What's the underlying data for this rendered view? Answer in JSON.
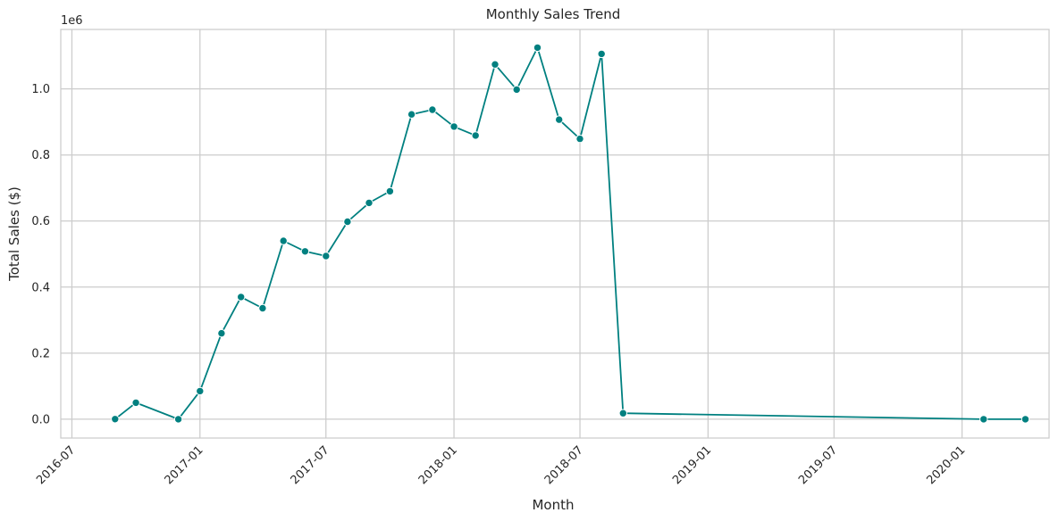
{
  "chart_data": {
    "type": "line",
    "title": "Monthly Sales Trend",
    "xlabel": "Month",
    "ylabel": "Total Sales ($)",
    "y_scale_label": "1e6",
    "y_scale": 1000000,
    "x_ticks": [
      "2016-07",
      "2017-01",
      "2017-07",
      "2018-01",
      "2018-07",
      "2019-01",
      "2019-07",
      "2020-01"
    ],
    "y_ticks": [
      "0.0",
      "0.2",
      "0.4",
      "0.6",
      "0.8",
      "1.0"
    ],
    "y_tick_values": [
      0,
      0.2,
      0.4,
      0.6,
      0.8,
      1.0
    ],
    "xlim": [
      "2016-06-15",
      "2020-05-05"
    ],
    "ylim": [
      -0.057,
      1.18
    ],
    "grid": true,
    "line_color": "#008080",
    "grid_color": "#cccccc",
    "series": [
      {
        "x": [
          "2016-09",
          "2016-10",
          "2016-12",
          "2017-01",
          "2017-02",
          "2017-03",
          "2017-04",
          "2017-05",
          "2017-06",
          "2017-07",
          "2017-08",
          "2017-09",
          "2017-10",
          "2017-11",
          "2017-12",
          "2018-01",
          "2018-02",
          "2018-03",
          "2018-04",
          "2018-05",
          "2018-06",
          "2018-07",
          "2018-08",
          "2018-09",
          "2020-02",
          "2020-04"
        ],
        "values": [
          0.0003,
          0.05,
          2e-05,
          0.085,
          0.26,
          0.37,
          0.336,
          0.54,
          0.508,
          0.494,
          0.598,
          0.655,
          0.69,
          0.923,
          0.937,
          0.886,
          0.859,
          1.074,
          0.998,
          1.125,
          0.907,
          0.849,
          1.106,
          0.018,
          0.0001,
          0.0001
        ]
      }
    ]
  }
}
